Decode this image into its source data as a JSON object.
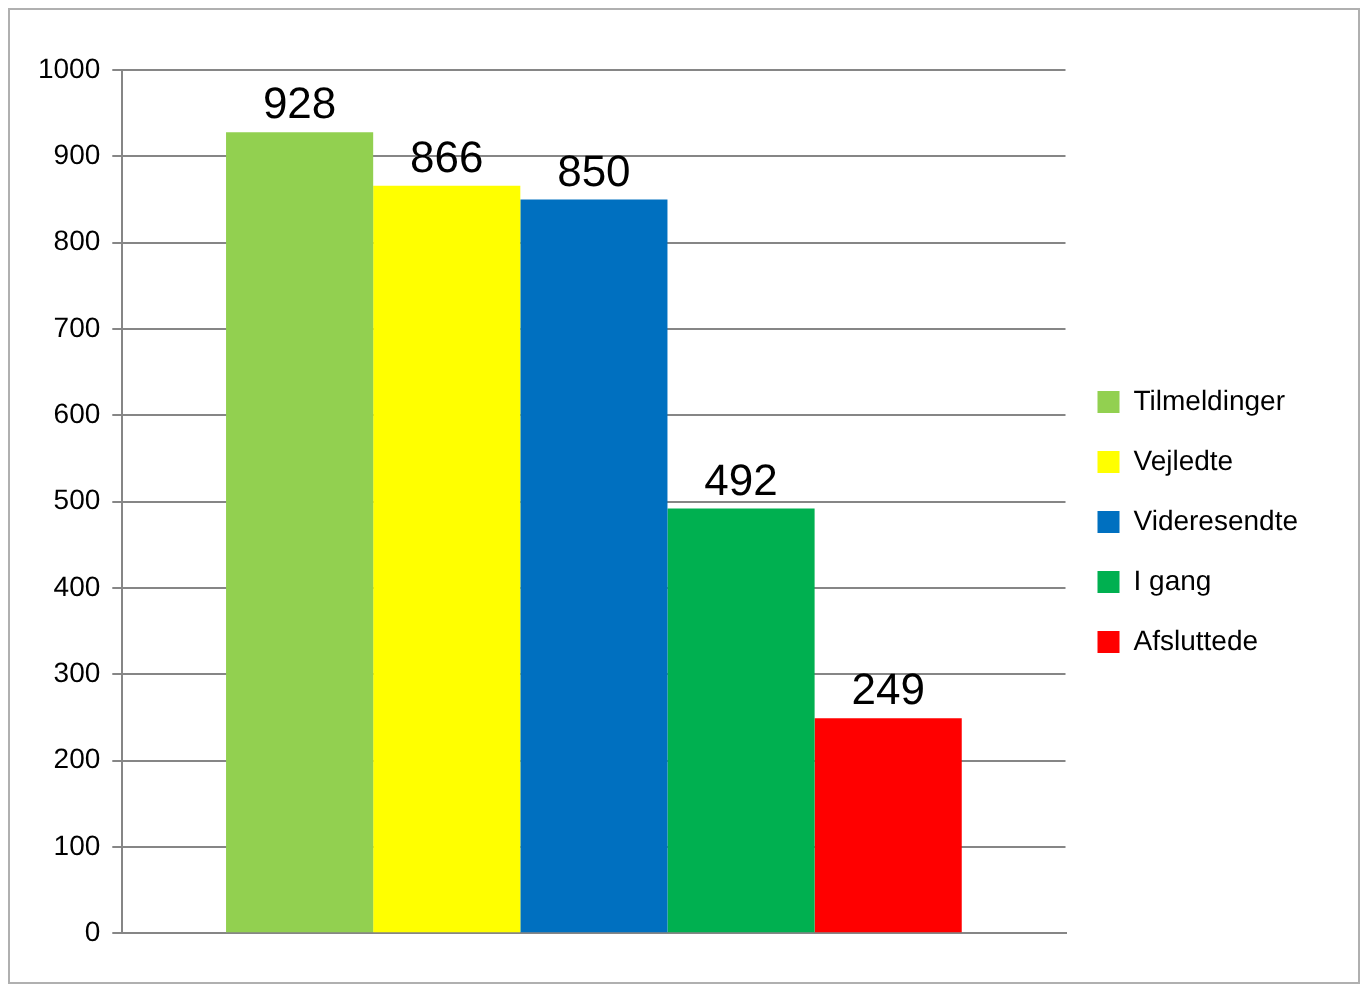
{
  "chart_data": {
    "type": "bar",
    "categories": [
      null
    ],
    "series": [
      {
        "name": "Tilmeldinger",
        "color": "#92d050",
        "values": [
          928
        ]
      },
      {
        "name": "Vejledte",
        "color": "#ffff00",
        "values": [
          866
        ]
      },
      {
        "name": "Videresendte",
        "color": "#0070c0",
        "values": [
          850
        ]
      },
      {
        "name": "I gang",
        "color": "#00b050",
        "values": [
          492
        ]
      },
      {
        "name": "Afsluttede",
        "color": "#ff0000",
        "values": [
          249
        ]
      }
    ],
    "ylim": [
      0,
      1000
    ],
    "yticks": [
      0,
      100,
      200,
      300,
      400,
      500,
      600,
      700,
      800,
      900,
      1000
    ],
    "grid": "y",
    "legend": "right",
    "data_labels": true
  }
}
